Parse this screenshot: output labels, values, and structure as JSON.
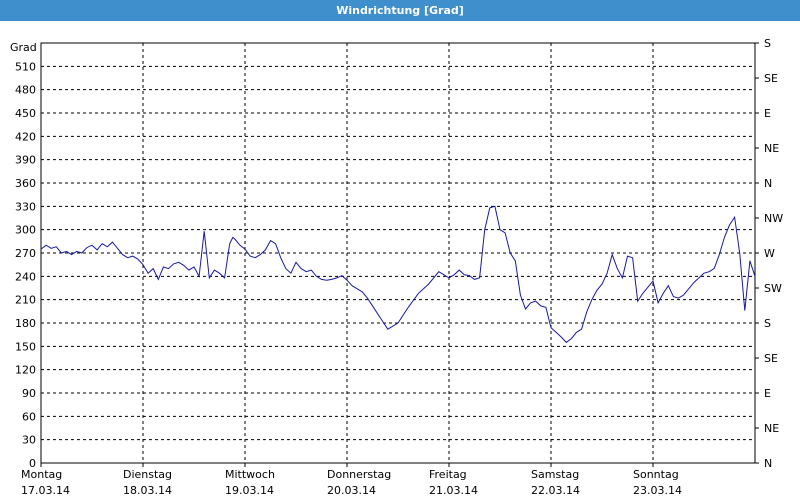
{
  "window": {
    "title": "Windrichtung [Grad]"
  },
  "chart_data": {
    "type": "line",
    "title": "Windrichtung [Grad]",
    "ylabel": "Grad",
    "xlabel": "",
    "ylim": [
      0,
      540
    ],
    "yticks": [
      0,
      30,
      60,
      90,
      120,
      150,
      180,
      210,
      240,
      270,
      300,
      330,
      360,
      390,
      420,
      450,
      480,
      510
    ],
    "right_axis_labels": [
      {
        "value": 0,
        "label": "N"
      },
      {
        "value": 45,
        "label": "NE"
      },
      {
        "value": 90,
        "label": "E"
      },
      {
        "value": 135,
        "label": "SE"
      },
      {
        "value": 180,
        "label": "S"
      },
      {
        "value": 225,
        "label": "SW"
      },
      {
        "value": 270,
        "label": "W"
      },
      {
        "value": 315,
        "label": "NW"
      },
      {
        "value": 360,
        "label": "N"
      },
      {
        "value": 405,
        "label": "NE"
      },
      {
        "value": 450,
        "label": "E"
      },
      {
        "value": 495,
        "label": "SE"
      },
      {
        "value": 540,
        "label": "S"
      }
    ],
    "xlim": [
      0,
      7
    ],
    "day_ticks": [
      {
        "day": "Montag",
        "date": "17.03.14"
      },
      {
        "day": "Dienstag",
        "date": "18.03.14"
      },
      {
        "day": "Mittwoch",
        "date": "19.03.14"
      },
      {
        "day": "Donnerstag",
        "date": "20.03.14"
      },
      {
        "day": "Freitag",
        "date": "21.03.14"
      },
      {
        "day": "Samstag",
        "date": "22.03.14"
      },
      {
        "day": "Sonntag",
        "date": "23.03.14"
      }
    ],
    "grid": true,
    "series": [
      {
        "color": "#1a1aa0",
        "x": [
          0,
          0.05,
          0.1,
          0.15,
          0.2,
          0.25,
          0.3,
          0.35,
          0.4,
          0.45,
          0.5,
          0.55,
          0.6,
          0.65,
          0.7,
          0.75,
          0.8,
          0.85,
          0.9,
          0.95,
          1,
          1.05,
          1.1,
          1.15,
          1.2,
          1.25,
          1.3,
          1.35,
          1.4,
          1.45,
          1.5,
          1.55,
          1.6,
          1.65,
          1.7,
          1.75,
          1.8,
          1.85,
          1.88,
          1.9,
          1.95,
          2,
          2.05,
          2.1,
          2.15,
          2.2,
          2.25,
          2.3,
          2.35,
          2.4,
          2.45,
          2.5,
          2.55,
          2.6,
          2.65,
          2.7,
          2.75,
          2.8,
          2.85,
          2.9,
          2.95,
          3,
          3.05,
          3.1,
          3.15,
          3.2,
          3.3,
          3.4,
          3.5,
          3.6,
          3.7,
          3.75,
          3.8,
          3.9,
          4,
          4.05,
          4.1,
          4.15,
          4.2,
          4.25,
          4.3,
          4.35,
          4.4,
          4.45,
          4.5,
          4.55,
          4.6,
          4.65,
          4.7,
          4.75,
          4.8,
          4.85,
          4.9,
          4.95,
          5,
          5.05,
          5.1,
          5.15,
          5.2,
          5.25,
          5.3,
          5.35,
          5.4,
          5.45,
          5.5,
          5.55,
          5.6,
          5.65,
          5.7,
          5.75,
          5.8,
          5.85,
          5.9,
          5.95,
          6,
          6.05,
          6.1,
          6.15,
          6.2,
          6.25,
          6.3,
          6.35,
          6.4,
          6.45,
          6.5,
          6.55,
          6.6,
          6.65,
          6.7,
          6.75,
          6.8,
          6.85,
          6.9,
          6.95,
          7
        ],
        "values": [
          275,
          280,
          276,
          278,
          270,
          272,
          268,
          272,
          270,
          277,
          280,
          274,
          282,
          278,
          284,
          276,
          268,
          264,
          266,
          262,
          255,
          244,
          250,
          236,
          252,
          250,
          256,
          258,
          254,
          248,
          252,
          240,
          298,
          238,
          248,
          244,
          238,
          282,
          290,
          288,
          280,
          275,
          266,
          264,
          268,
          274,
          286,
          282,
          264,
          250,
          244,
          258,
          250,
          246,
          248,
          240,
          236,
          235,
          236,
          238,
          241,
          235,
          228,
          224,
          220,
          212,
          192,
          172,
          180,
          200,
          218,
          224,
          230,
          246,
          238,
          242,
          248,
          242,
          241,
          236,
          238,
          300,
          328,
          330,
          300,
          296,
          270,
          260,
          216,
          198,
          206,
          208,
          202,
          200,
          174,
          168,
          162,
          155,
          160,
          168,
          172,
          194,
          210,
          222,
          230,
          244,
          268,
          250,
          238,
          266,
          264,
          208,
          218,
          226,
          234,
          206,
          218,
          228,
          214,
          212,
          216,
          224,
          232,
          238,
          244,
          246,
          250,
          268,
          290,
          306,
          316,
          270,
          196,
          260,
          240
        ]
      }
    ]
  }
}
